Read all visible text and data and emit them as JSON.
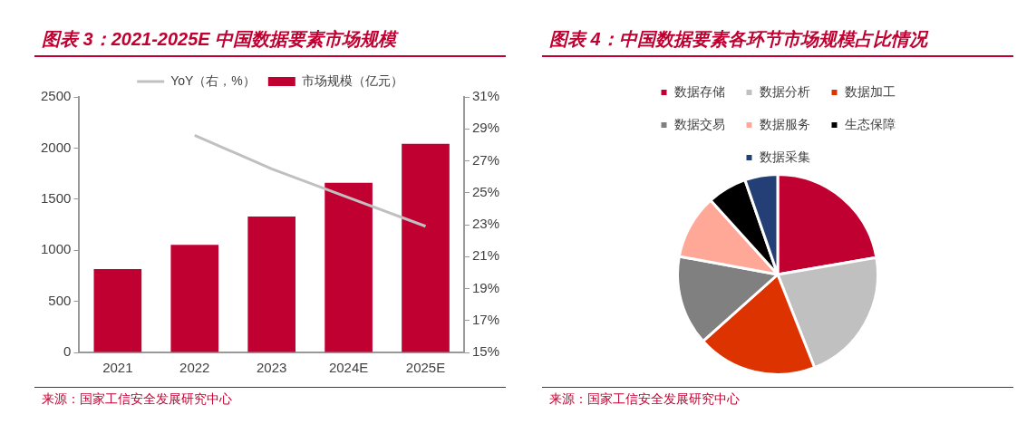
{
  "chart_data": [
    {
      "type": "bar",
      "title": "图表 3：2021-2025E 中国数据要素市场规模",
      "categories": [
        "2021",
        "2022",
        "2023",
        "2024E",
        "2025E"
      ],
      "series": [
        {
          "name": "市场规模（亿元）",
          "type": "bar",
          "color": "#c00030",
          "values": [
            816,
            1052,
            1330,
            1661,
            2041
          ]
        },
        {
          "name": "YoY（右，%）",
          "type": "line",
          "axis": "y2",
          "color": "#c0c0c0",
          "values": [
            null,
            28.6,
            26.5,
            24.7,
            22.9
          ]
        }
      ],
      "ylim": [
        0,
        2500
      ],
      "yticks": [
        0,
        500,
        1000,
        1500,
        2000,
        2500
      ],
      "y2lim": [
        15,
        31
      ],
      "y2ticks": [
        {
          "value": 15,
          "label": "15%"
        },
        {
          "value": 17,
          "label": "17%"
        },
        {
          "value": 19,
          "label": "19%"
        },
        {
          "value": 21,
          "label": "21%"
        },
        {
          "value": 23,
          "label": "23%"
        },
        {
          "value": 25,
          "label": "25%"
        },
        {
          "value": 27,
          "label": "27%"
        },
        {
          "value": 29,
          "label": "29%"
        },
        {
          "value": 31,
          "label": "31%"
        }
      ],
      "grid": false,
      "legend": "top",
      "marker": "none",
      "annotations": [
        "来源：国家工信安全发展研究中心"
      ]
    },
    {
      "type": "pie",
      "title": "图表 4：中国数据要素各环节市场规模占比情况",
      "categories": [
        "数据存储",
        "数据分析",
        "数据加工",
        "数据交易",
        "数据服务",
        "生态保障",
        "数据采集"
      ],
      "values": [
        22.3,
        21.7,
        19.4,
        14.5,
        10.4,
        6.4,
        5.3
      ],
      "colors": [
        "#c00030",
        "#c0c0c0",
        "#dd3300",
        "#808080",
        "#ffa898",
        "#000000",
        "#233f75"
      ],
      "legend": "top",
      "annotations": [
        "来源：国家工信安全发展研究中心"
      ]
    }
  ]
}
